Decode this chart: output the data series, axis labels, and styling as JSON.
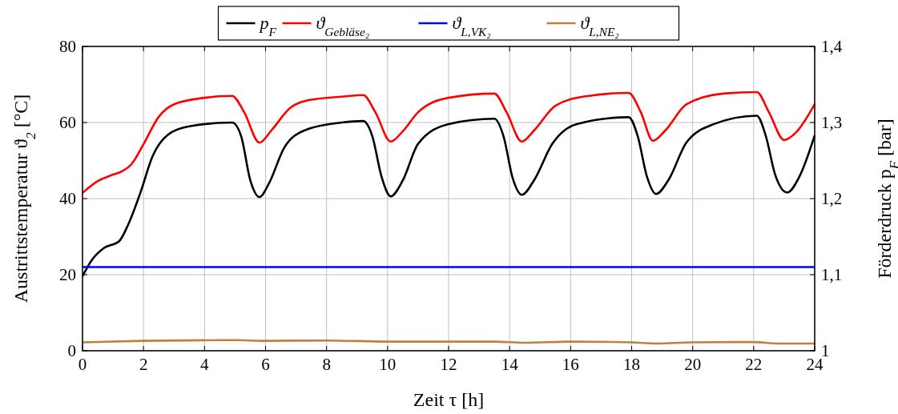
{
  "chart_data": {
    "type": "line",
    "xlabel": "Zeit τ [h]",
    "ylabel": "Austrittstemperatur ϑ$_{2}$ [°C]",
    "y2label": "Förderdruck p$_{F}$ [bar]",
    "xlim": [
      0,
      24
    ],
    "xticks": [
      0,
      2,
      4,
      6,
      8,
      10,
      12,
      14,
      16,
      18,
      20,
      22,
      24
    ],
    "ylim": [
      0,
      80
    ],
    "yticks": [
      0,
      20,
      40,
      60,
      80
    ],
    "y2lim": [
      1,
      1.4
    ],
    "y2ticks": [
      {
        "value": 1,
        "label": "1"
      },
      {
        "value": 1.1,
        "label": "1,1"
      },
      {
        "value": 1.2,
        "label": "1,2"
      },
      {
        "value": 1.3,
        "label": "1,3"
      },
      {
        "value": 1.4,
        "label": "1,4"
      }
    ],
    "grid": true,
    "legend": "top",
    "line_style": "solid",
    "series": [
      {
        "name": "p$_{F}$",
        "color": "#000000",
        "axis": "y2",
        "x": [
          0,
          0.3,
          0.7,
          1.2,
          1.5,
          1.9,
          2.3,
          2.8,
          3.5,
          4.9,
          5.2,
          5.5,
          5.8,
          6.1,
          6.6,
          7.3,
          8.5,
          9.2,
          9.5,
          9.8,
          10.1,
          10.5,
          11,
          12,
          13.5,
          13.8,
          14.1,
          14.4,
          14.8,
          15.4,
          16.2,
          17.9,
          18.2,
          18.5,
          18.8,
          19.2,
          19.8,
          20.7,
          22.1,
          22.4,
          22.7,
          23.1,
          23.5,
          24
        ],
        "values": [
          1.098,
          1.119,
          1.135,
          1.144,
          1.166,
          1.208,
          1.256,
          1.284,
          1.295,
          1.3,
          1.282,
          1.224,
          1.202,
          1.219,
          1.266,
          1.29,
          1.3,
          1.302,
          1.282,
          1.229,
          1.203,
          1.224,
          1.272,
          1.298,
          1.305,
          1.282,
          1.227,
          1.205,
          1.224,
          1.272,
          1.298,
          1.307,
          1.282,
          1.229,
          1.206,
          1.224,
          1.274,
          1.298,
          1.309,
          1.282,
          1.232,
          1.208,
          1.229,
          1.283
        ]
      },
      {
        "name": "ϑ$_{Gebläse₂}$",
        "color": "#ff0000",
        "x": [
          0,
          0.5,
          1,
          1.3,
          1.6,
          2,
          2.5,
          3,
          4,
          4.9,
          5.3,
          5.8,
          6.2,
          6.8,
          7.5,
          8.5,
          9.2,
          9.6,
          10.1,
          10.5,
          11,
          12,
          13.5,
          13.9,
          14.4,
          14.8,
          15.5,
          16.5,
          17.9,
          18.3,
          18.7,
          19.1,
          19.8,
          21,
          22.1,
          22.5,
          23,
          23.4,
          24
        ],
        "values": [
          41.5,
          44.6,
          46.3,
          47.2,
          49,
          54.3,
          61.5,
          64.8,
          66.5,
          67,
          62.7,
          54.7,
          58,
          63.8,
          66,
          66.8,
          67.2,
          62.7,
          55,
          57.7,
          62.7,
          66.5,
          67.6,
          62.7,
          55,
          57.9,
          64.4,
          66.9,
          67.8,
          62.7,
          55.2,
          57.9,
          64.8,
          67.6,
          68,
          62.7,
          55.4,
          57.5,
          64.8
        ]
      },
      {
        "name": "ϑ$_{L,VK₂}$",
        "color": "#0000ff",
        "x": [
          0,
          24
        ],
        "values": [
          22,
          22
        ]
      },
      {
        "name": "ϑ$_{L,NE₂}$",
        "color": "#bf8040",
        "x": [
          0,
          2,
          5,
          6,
          8,
          10,
          13.5,
          14.5,
          16,
          18,
          18.8,
          20,
          22,
          22.8,
          24
        ],
        "values": [
          2.2,
          2.6,
          2.8,
          2.6,
          2.7,
          2.4,
          2.4,
          2.1,
          2.4,
          2.2,
          1.9,
          2.2,
          2.3,
          1.9,
          1.9
        ]
      }
    ]
  }
}
